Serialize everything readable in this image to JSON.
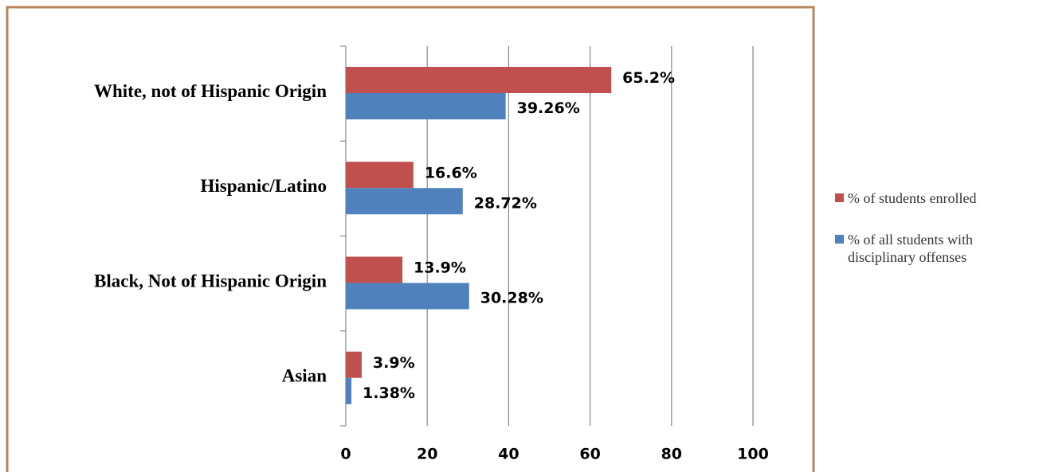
{
  "chart_data": {
    "type": "hbar",
    "categories": [
      "White, not of Hispanic Origin",
      "Hispanic/Latino",
      "Black, Not of Hispanic Origin",
      "Asian"
    ],
    "series": [
      {
        "name": "% of students enrolled",
        "color": "#c0504d",
        "values": [
          65.2,
          16.6,
          13.9,
          3.9
        ],
        "value_labels": [
          "65.2%",
          "16.6%",
          "13.9%",
          "3.9%"
        ]
      },
      {
        "name": "% of all students with disciplinary offenses",
        "color": "#4f81bd",
        "values": [
          39.26,
          28.72,
          30.28,
          1.38
        ],
        "value_labels": [
          "39.26%",
          "28.72%",
          "30.28%",
          "1.38%"
        ]
      }
    ],
    "xlim": [
      0,
      100
    ],
    "xticks": [
      0,
      20,
      40,
      60,
      80,
      100
    ],
    "grid": true,
    "legend": "right"
  }
}
